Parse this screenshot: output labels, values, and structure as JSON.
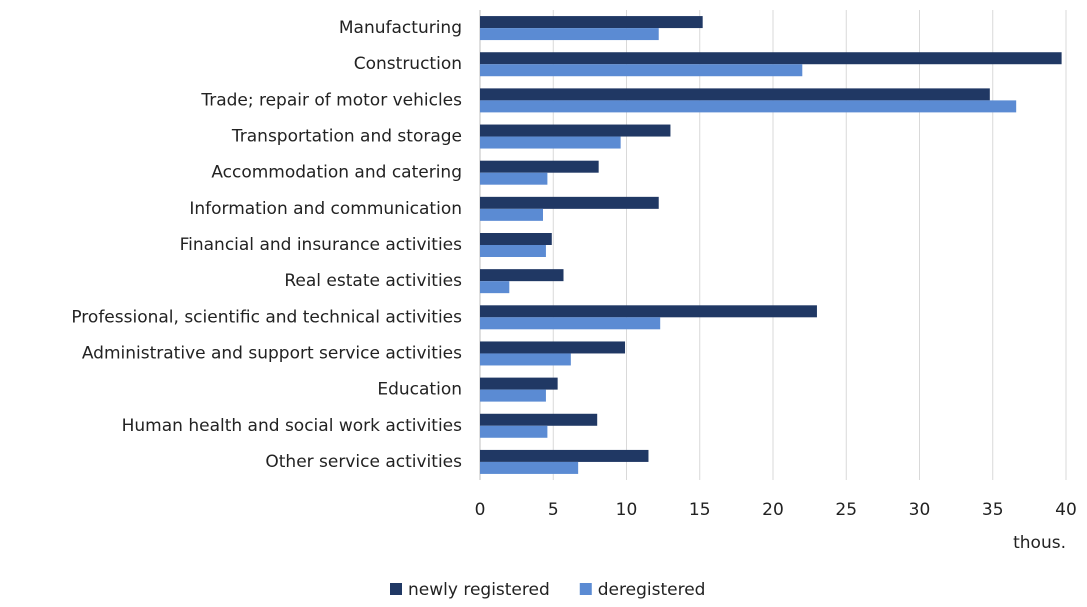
{
  "chart_data": {
    "type": "barh",
    "categories": [
      "Manufacturing",
      "Construction",
      "Trade; repair of motor vehicles",
      "Transportation and storage",
      "Accommodation and catering",
      "Information and communication",
      "Financial and insurance activities",
      "Real estate activities",
      "Professional, scientific and technical activities",
      "Administrative and support service activities",
      "Education",
      "Human health and social work activities",
      "Other service activities"
    ],
    "series": [
      {
        "name": "newly registered",
        "color": "#203864",
        "values": [
          15.2,
          39.7,
          34.8,
          13.0,
          8.1,
          12.2,
          4.9,
          5.7,
          23.0,
          9.9,
          5.3,
          8.0,
          11.5
        ]
      },
      {
        "name": "deregistered",
        "color": "#5b8bd3",
        "values": [
          12.2,
          22.0,
          36.6,
          9.6,
          4.6,
          4.3,
          4.5,
          2.0,
          12.3,
          6.2,
          4.5,
          4.6,
          6.7
        ]
      }
    ],
    "xlim": [
      0,
      40
    ],
    "xticks": [
      0,
      5,
      10,
      15,
      20,
      25,
      30,
      35,
      40
    ],
    "x_label": "thous.",
    "grid": true,
    "legend": "bottom"
  }
}
